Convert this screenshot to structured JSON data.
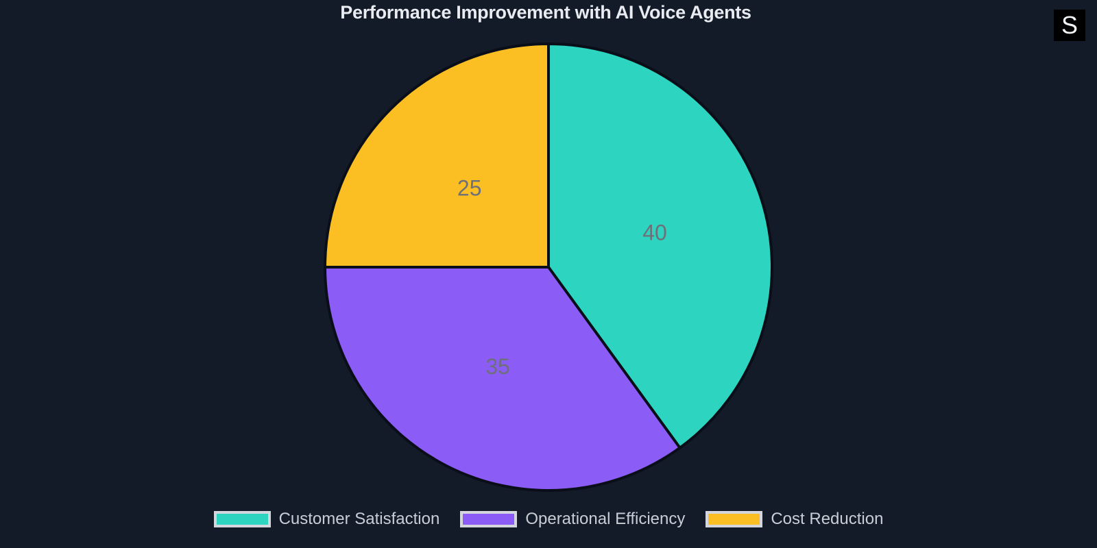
{
  "title": "Performance Improvement with AI Voice Agents",
  "logo": {
    "letter": "S"
  },
  "colors": {
    "background": "#131a28",
    "slice_stroke": "#0a0e18",
    "value_label": "#6e7079",
    "legend_text": "#c9ced6",
    "swatch_border": "#d3d7dd",
    "title_text": "#e8ebef"
  },
  "chart_data": {
    "type": "pie",
    "title": "Performance Improvement with AI Voice Agents",
    "series": [
      {
        "name": "Customer Satisfaction",
        "value": 40,
        "color": "#2DD4BF"
      },
      {
        "name": "Operational Efficiency",
        "value": 35,
        "color": "#8B5CF6"
      },
      {
        "name": "Cost Reduction",
        "value": 25,
        "color": "#FBBF24"
      }
    ],
    "start_angle": "top",
    "direction": "clockwise",
    "labels": "values-inside",
    "label_radius_ratio": 0.5,
    "legend_position": "bottom"
  }
}
